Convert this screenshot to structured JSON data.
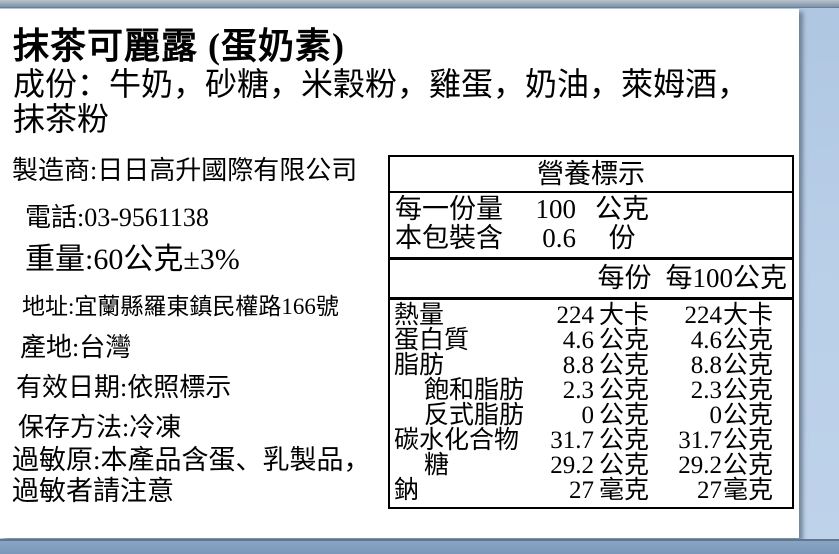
{
  "label": {
    "title": "抹茶可麗露 (蛋奶素)",
    "ingredients": "成份：牛奶，砂糖，米穀粉，雞蛋，奶油，萊姆酒，抹茶粉",
    "info_lines": [
      "製造商:日日高升國際有限公司",
      "電話:03-9561138",
      "重量:60公克±3%",
      "地址:宜蘭縣羅東鎮民權路166號",
      "產地:台灣",
      "有效日期:依照標示",
      "保存方法:冷凍",
      "過敏原:本產品含蛋、乳製品，過敏者請注意"
    ]
  },
  "nutrition": {
    "title": "營養標示",
    "serving": [
      {
        "label": "每一份量",
        "value": "100",
        "unit": "公克"
      },
      {
        "label": "本包裝含",
        "value": "0.6",
        "unit": "份"
      }
    ],
    "columns": {
      "per_serving": "每份",
      "per_100g": "每100公克"
    },
    "rows": [
      {
        "label": "熱量",
        "indent": false,
        "v1": "224",
        "u1": "大卡",
        "v2": "224",
        "u2": "大卡"
      },
      {
        "label": "蛋白質",
        "indent": false,
        "v1": "4.6",
        "u1": "公克",
        "v2": "4.6",
        "u2": "公克"
      },
      {
        "label": "脂肪",
        "indent": false,
        "v1": "8.8",
        "u1": "公克",
        "v2": "8.8",
        "u2": "公克"
      },
      {
        "label": "飽和脂肪",
        "indent": true,
        "v1": "2.3",
        "u1": "公克",
        "v2": "2.3",
        "u2": "公克"
      },
      {
        "label": "反式脂肪",
        "indent": true,
        "v1": "0",
        "u1": "公克",
        "v2": "0",
        "u2": "公克"
      },
      {
        "label": "碳水化合物",
        "indent": false,
        "v1": "31.7",
        "u1": "公克",
        "v2": "31.7",
        "u2": "公克"
      },
      {
        "label": "糖",
        "indent": true,
        "v1": "29.2",
        "u1": "公克",
        "v2": "29.2",
        "u2": "公克"
      },
      {
        "label": "鈉",
        "indent": false,
        "v1": "27",
        "u1": "毫克",
        "v2": "27",
        "u2": "毫克"
      }
    ]
  },
  "colors": {
    "page_bg": "#ffffff",
    "desktop_blue": "#b9cfe8",
    "bottom_bar": "#7b97b9",
    "top_bar": "#8ea0b1",
    "table_border": "#000000",
    "text": "#000000"
  }
}
